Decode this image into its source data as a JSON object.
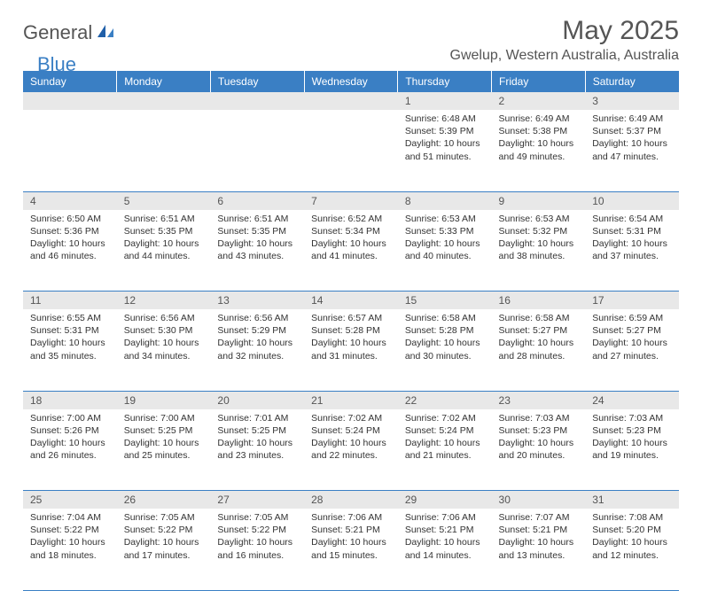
{
  "logo": {
    "general": "General",
    "blue": "Blue"
  },
  "title": "May 2025",
  "location": "Gwelup, Western Australia, Australia",
  "colors": {
    "header_bg": "#3a7fc4",
    "header_text": "#ffffff",
    "daynum_bg": "#e8e8e8",
    "border": "#3a7fc4",
    "text": "#333333",
    "title_text": "#555555"
  },
  "weekdays": [
    "Sunday",
    "Monday",
    "Tuesday",
    "Wednesday",
    "Thursday",
    "Friday",
    "Saturday"
  ],
  "weeks": [
    {
      "nums": [
        "",
        "",
        "",
        "",
        "1",
        "2",
        "3"
      ],
      "cells": [
        null,
        null,
        null,
        null,
        {
          "sunrise": "6:48 AM",
          "sunset": "5:39 PM",
          "daylight": "10 hours and 51 minutes."
        },
        {
          "sunrise": "6:49 AM",
          "sunset": "5:38 PM",
          "daylight": "10 hours and 49 minutes."
        },
        {
          "sunrise": "6:49 AM",
          "sunset": "5:37 PM",
          "daylight": "10 hours and 47 minutes."
        }
      ]
    },
    {
      "nums": [
        "4",
        "5",
        "6",
        "7",
        "8",
        "9",
        "10"
      ],
      "cells": [
        {
          "sunrise": "6:50 AM",
          "sunset": "5:36 PM",
          "daylight": "10 hours and 46 minutes."
        },
        {
          "sunrise": "6:51 AM",
          "sunset": "5:35 PM",
          "daylight": "10 hours and 44 minutes."
        },
        {
          "sunrise": "6:51 AM",
          "sunset": "5:35 PM",
          "daylight": "10 hours and 43 minutes."
        },
        {
          "sunrise": "6:52 AM",
          "sunset": "5:34 PM",
          "daylight": "10 hours and 41 minutes."
        },
        {
          "sunrise": "6:53 AM",
          "sunset": "5:33 PM",
          "daylight": "10 hours and 40 minutes."
        },
        {
          "sunrise": "6:53 AM",
          "sunset": "5:32 PM",
          "daylight": "10 hours and 38 minutes."
        },
        {
          "sunrise": "6:54 AM",
          "sunset": "5:31 PM",
          "daylight": "10 hours and 37 minutes."
        }
      ]
    },
    {
      "nums": [
        "11",
        "12",
        "13",
        "14",
        "15",
        "16",
        "17"
      ],
      "cells": [
        {
          "sunrise": "6:55 AM",
          "sunset": "5:31 PM",
          "daylight": "10 hours and 35 minutes."
        },
        {
          "sunrise": "6:56 AM",
          "sunset": "5:30 PM",
          "daylight": "10 hours and 34 minutes."
        },
        {
          "sunrise": "6:56 AM",
          "sunset": "5:29 PM",
          "daylight": "10 hours and 32 minutes."
        },
        {
          "sunrise": "6:57 AM",
          "sunset": "5:28 PM",
          "daylight": "10 hours and 31 minutes."
        },
        {
          "sunrise": "6:58 AM",
          "sunset": "5:28 PM",
          "daylight": "10 hours and 30 minutes."
        },
        {
          "sunrise": "6:58 AM",
          "sunset": "5:27 PM",
          "daylight": "10 hours and 28 minutes."
        },
        {
          "sunrise": "6:59 AM",
          "sunset": "5:27 PM",
          "daylight": "10 hours and 27 minutes."
        }
      ]
    },
    {
      "nums": [
        "18",
        "19",
        "20",
        "21",
        "22",
        "23",
        "24"
      ],
      "cells": [
        {
          "sunrise": "7:00 AM",
          "sunset": "5:26 PM",
          "daylight": "10 hours and 26 minutes."
        },
        {
          "sunrise": "7:00 AM",
          "sunset": "5:25 PM",
          "daylight": "10 hours and 25 minutes."
        },
        {
          "sunrise": "7:01 AM",
          "sunset": "5:25 PM",
          "daylight": "10 hours and 23 minutes."
        },
        {
          "sunrise": "7:02 AM",
          "sunset": "5:24 PM",
          "daylight": "10 hours and 22 minutes."
        },
        {
          "sunrise": "7:02 AM",
          "sunset": "5:24 PM",
          "daylight": "10 hours and 21 minutes."
        },
        {
          "sunrise": "7:03 AM",
          "sunset": "5:23 PM",
          "daylight": "10 hours and 20 minutes."
        },
        {
          "sunrise": "7:03 AM",
          "sunset": "5:23 PM",
          "daylight": "10 hours and 19 minutes."
        }
      ]
    },
    {
      "nums": [
        "25",
        "26",
        "27",
        "28",
        "29",
        "30",
        "31"
      ],
      "cells": [
        {
          "sunrise": "7:04 AM",
          "sunset": "5:22 PM",
          "daylight": "10 hours and 18 minutes."
        },
        {
          "sunrise": "7:05 AM",
          "sunset": "5:22 PM",
          "daylight": "10 hours and 17 minutes."
        },
        {
          "sunrise": "7:05 AM",
          "sunset": "5:22 PM",
          "daylight": "10 hours and 16 minutes."
        },
        {
          "sunrise": "7:06 AM",
          "sunset": "5:21 PM",
          "daylight": "10 hours and 15 minutes."
        },
        {
          "sunrise": "7:06 AM",
          "sunset": "5:21 PM",
          "daylight": "10 hours and 14 minutes."
        },
        {
          "sunrise": "7:07 AM",
          "sunset": "5:21 PM",
          "daylight": "10 hours and 13 minutes."
        },
        {
          "sunrise": "7:08 AM",
          "sunset": "5:20 PM",
          "daylight": "10 hours and 12 minutes."
        }
      ]
    }
  ],
  "labels": {
    "sunrise": "Sunrise: ",
    "sunset": "Sunset: ",
    "daylight": "Daylight: "
  }
}
